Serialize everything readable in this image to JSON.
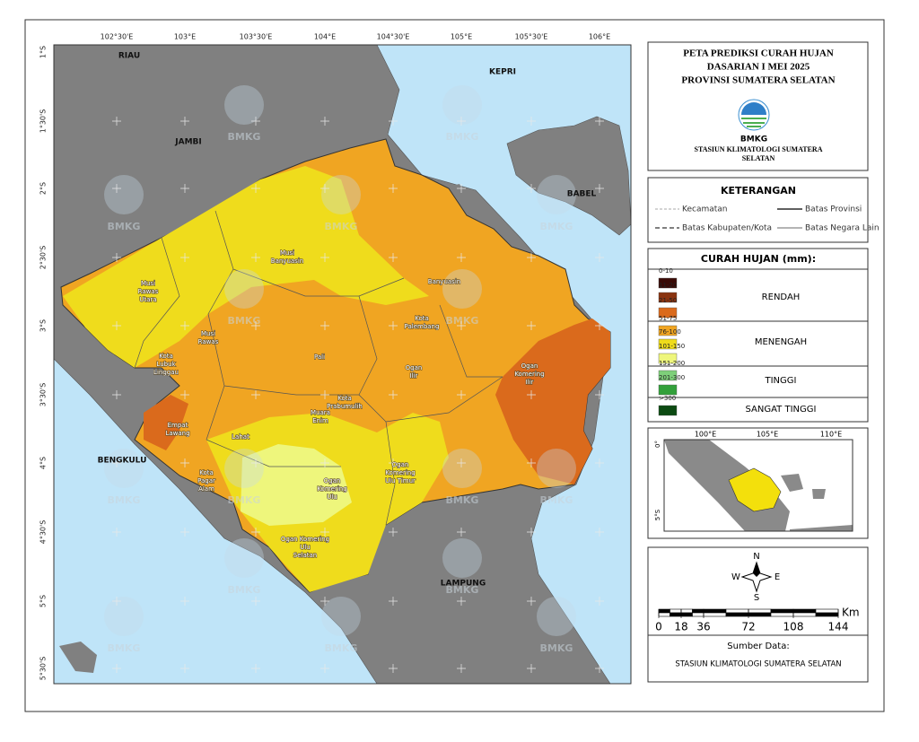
{
  "map": {
    "lon_labels": [
      "102°30'E",
      "103°E",
      "103°30'E",
      "104°E",
      "104°30'E",
      "105°E",
      "105°30'E",
      "106°E"
    ],
    "lat_labels": [
      "1°S",
      "1°30'S",
      "2°S",
      "2°30'S",
      "3°S",
      "3°30'S",
      "4°S",
      "4°30'S",
      "5°S",
      "5°30'S"
    ],
    "province_labels": [
      "RIAU",
      "JAMBI",
      "KEPRI",
      "BABEL",
      "BENGKULU",
      "LAMPUNG"
    ],
    "regency_labels": [
      {
        "lines": [
          "Musi",
          "Rawas",
          "Utara"
        ]
      },
      {
        "lines": [
          "Musi",
          "Banyuasin"
        ]
      },
      {
        "lines": [
          "Banyuasin"
        ]
      },
      {
        "lines": [
          "Musi",
          "Rawas"
        ]
      },
      {
        "lines": [
          "Kota",
          "Lubuk",
          "Linggau"
        ]
      },
      {
        "lines": [
          "Pali"
        ]
      },
      {
        "lines": [
          "Kota",
          "Palembang"
        ]
      },
      {
        "lines": [
          "Ogan",
          "Ilir"
        ]
      },
      {
        "lines": [
          "Ogan",
          "Komering",
          "Ilir"
        ]
      },
      {
        "lines": [
          "Kota",
          "Prabumulih"
        ]
      },
      {
        "lines": [
          "Muara",
          "Enim"
        ]
      },
      {
        "lines": [
          "Empat",
          "Lawang"
        ]
      },
      {
        "lines": [
          "Lahat"
        ]
      },
      {
        "lines": [
          "Ogan",
          "Komering",
          "Ulu"
        ]
      },
      {
        "lines": [
          "Ogan",
          "Komering",
          "Ulu Timur"
        ]
      },
      {
        "lines": [
          "Kota",
          "Pagar",
          "Alam"
        ]
      },
      {
        "lines": [
          "Ogan Komering",
          "Ulu",
          "Selatan"
        ]
      }
    ],
    "watermark": "BMKG"
  },
  "title_panel": {
    "title_lines": [
      "PETA PREDIKSI CURAH HUJAN",
      "DASARIAN I MEI 2025",
      "PROVINSI SUMATERA SELATAN"
    ],
    "logo_text": "BMKG",
    "station_lines": [
      "STASIUN KLIMATOLOGI SUMATERA",
      "SELATAN"
    ]
  },
  "keterangan": {
    "title": "KETERANGAN",
    "items": [
      "Kecamatan",
      "Batas Provinsi",
      "Batas Kabupaten/Kota",
      "Batas Negara Lain"
    ]
  },
  "curah_hujan": {
    "title": "CURAH HUJAN (mm):",
    "classes": [
      {
        "label": "0-10",
        "color": "#3a0a06"
      },
      {
        "label": "11-20",
        "color": "#8a3310"
      },
      {
        "label": "21-50",
        "color": "#da6a1c"
      },
      {
        "label": "51-75",
        "color": "#f0a522"
      },
      {
        "label": "76-100",
        "color": "#efdc1c"
      },
      {
        "label": "101-150",
        "color": "#eef67c"
      },
      {
        "label": "151-200",
        "color": "#7ed07a"
      },
      {
        "label": "201-300",
        "color": "#32a03a"
      },
      {
        "label": ">300",
        "color": "#0c4a12"
      }
    ],
    "groups": [
      "RENDAH",
      "MENENGAH",
      "TINGGI",
      "SANGAT TINGGI"
    ]
  },
  "inset": {
    "lon_labels": [
      "100°E",
      "105°E",
      "110°E"
    ],
    "lat_labels": [
      "0°",
      "5°S"
    ]
  },
  "north_arrow": {
    "n": "N",
    "s": "S",
    "w": "W",
    "e": "E"
  },
  "scale": {
    "unit": "Km",
    "ticks": [
      0,
      18,
      36,
      72,
      108,
      144
    ]
  },
  "source": {
    "label": "Sumber Data:",
    "text": "STASIUN KLIMATOLOGI SUMATERA SELATAN"
  }
}
